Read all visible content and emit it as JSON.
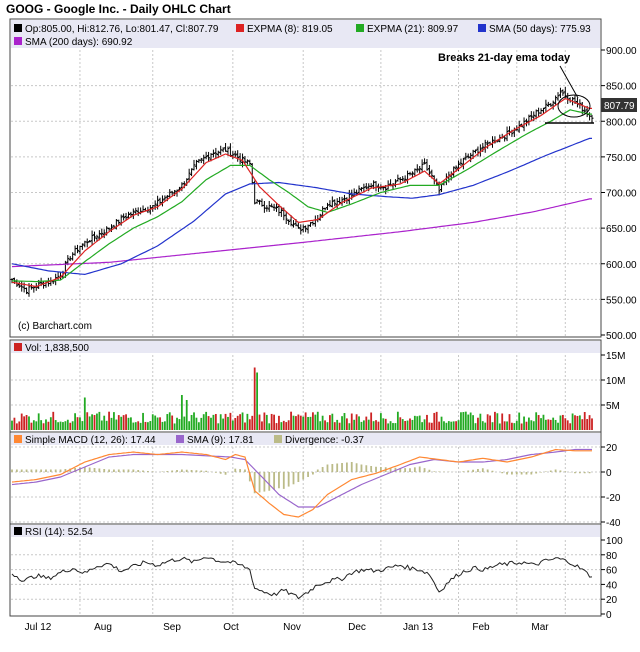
{
  "title": "GOOG - Google Inc. - Daily OHLC Chart",
  "colors": {
    "price_bar": "#000000",
    "ema8": "#dd2222",
    "ema21": "#22aa22",
    "sma50": "#2233cc",
    "sma200": "#aa22cc",
    "vol_up": "#22aa22",
    "vol_down": "#cc2222",
    "macd": "#ff8833",
    "macd_signal": "#9966cc",
    "divergence": "#bbbb88",
    "legend_bg": "#e8e8f4",
    "grid": "#c8c8c8",
    "price_box": "#333333"
  },
  "main_legend": {
    "ohlc": "Op:805.00, Hi:812.76, Lo:801.47, Cl:807.79",
    "ema8": "EXPMA (8): 819.05",
    "ema21": "EXPMA (21): 809.97",
    "sma50": "SMA (50 days): 775.93",
    "sma200": "SMA (200 days): 690.92"
  },
  "watermark": "(c) Barchart.com",
  "annotation": "Breaks 21-day ema today",
  "last_price_label": "807.79",
  "vol_legend": "Vol: 1,838,500",
  "macd_legend": {
    "macd": "Simple MACD (12, 26): 17.44",
    "signal": "SMA (9): 17.81",
    "divergence": "Divergence: -0.37"
  },
  "rsi_legend": "RSI (14): 52.54",
  "chart_data": [
    {
      "type": "ohlc",
      "panel": "price",
      "ylim": [
        500,
        900
      ],
      "yticks": [
        "900.00",
        "850.00",
        "800.00",
        "750.00",
        "700.00",
        "650.00",
        "600.00",
        "550.00",
        "500.00"
      ],
      "xticks": [
        "Jul 12",
        "Aug",
        "Sep",
        "Oct",
        "Nov",
        "Dec",
        "Jan 13",
        "Feb",
        "Mar"
      ],
      "close_keypoints": [
        [
          0,
          578
        ],
        [
          6,
          563
        ],
        [
          12,
          572
        ],
        [
          16,
          575
        ],
        [
          20,
          585
        ],
        [
          24,
          610
        ],
        [
          28,
          625
        ],
        [
          34,
          638
        ],
        [
          40,
          650
        ],
        [
          46,
          665
        ],
        [
          52,
          675
        ],
        [
          58,
          680
        ],
        [
          64,
          695
        ],
        [
          70,
          710
        ],
        [
          76,
          740
        ],
        [
          82,
          755
        ],
        [
          88,
          760
        ],
        [
          92,
          752
        ],
        [
          95,
          745
        ],
        [
          98,
          740
        ],
        [
          100,
          688
        ],
        [
          104,
          682
        ],
        [
          108,
          678
        ],
        [
          112,
          670
        ],
        [
          118,
          648
        ],
        [
          122,
          655
        ],
        [
          126,
          665
        ],
        [
          130,
          685
        ],
        [
          136,
          690
        ],
        [
          142,
          700
        ],
        [
          148,
          712
        ],
        [
          154,
          708
        ],
        [
          160,
          718
        ],
        [
          164,
          725
        ],
        [
          170,
          738
        ],
        [
          173,
          722
        ],
        [
          176,
          702
        ],
        [
          180,
          725
        ],
        [
          186,
          745
        ],
        [
          192,
          760
        ],
        [
          198,
          772
        ],
        [
          204,
          782
        ],
        [
          210,
          795
        ],
        [
          216,
          812
        ],
        [
          222,
          825
        ],
        [
          226,
          842
        ],
        [
          230,
          832
        ],
        [
          234,
          822
        ],
        [
          238,
          808
        ]
      ],
      "ema8_keypoints": [
        [
          0,
          574
        ],
        [
          10,
          568
        ],
        [
          20,
          581
        ],
        [
          30,
          618
        ],
        [
          40,
          645
        ],
        [
          50,
          668
        ],
        [
          60,
          680
        ],
        [
          70,
          705
        ],
        [
          80,
          742
        ],
        [
          88,
          754
        ],
        [
          95,
          745
        ],
        [
          102,
          708
        ],
        [
          110,
          682
        ],
        [
          118,
          658
        ],
        [
          126,
          662
        ],
        [
          136,
          686
        ],
        [
          148,
          706
        ],
        [
          160,
          712
        ],
        [
          170,
          730
        ],
        [
          176,
          712
        ],
        [
          184,
          733
        ],
        [
          196,
          765
        ],
        [
          208,
          790
        ],
        [
          218,
          808
        ],
        [
          228,
          832
        ],
        [
          238,
          818
        ]
      ],
      "ema21_keypoints": [
        [
          0,
          576
        ],
        [
          10,
          575
        ],
        [
          20,
          577
        ],
        [
          30,
          603
        ],
        [
          40,
          628
        ],
        [
          50,
          650
        ],
        [
          60,
          666
        ],
        [
          70,
          687
        ],
        [
          80,
          718
        ],
        [
          90,
          738
        ],
        [
          98,
          738
        ],
        [
          106,
          718
        ],
        [
          114,
          700
        ],
        [
          122,
          680
        ],
        [
          130,
          672
        ],
        [
          140,
          684
        ],
        [
          152,
          700
        ],
        [
          164,
          710
        ],
        [
          176,
          710
        ],
        [
          188,
          733
        ],
        [
          200,
          758
        ],
        [
          212,
          782
        ],
        [
          222,
          800
        ],
        [
          230,
          816
        ],
        [
          238,
          810
        ]
      ],
      "sma50_keypoints": [
        [
          0,
          600
        ],
        [
          15,
          590
        ],
        [
          30,
          585
        ],
        [
          45,
          600
        ],
        [
          60,
          625
        ],
        [
          75,
          660
        ],
        [
          88,
          698
        ],
        [
          98,
          712
        ],
        [
          110,
          714
        ],
        [
          125,
          707
        ],
        [
          140,
          698
        ],
        [
          155,
          694
        ],
        [
          165,
          692
        ],
        [
          176,
          697
        ],
        [
          190,
          710
        ],
        [
          205,
          730
        ],
        [
          220,
          752
        ],
        [
          238,
          776
        ]
      ],
      "sma200_keypoints": [
        [
          0,
          596
        ],
        [
          40,
          602
        ],
        [
          80,
          616
        ],
        [
          120,
          630
        ],
        [
          160,
          645
        ],
        [
          190,
          658
        ],
        [
          215,
          673
        ],
        [
          238,
          691
        ]
      ]
    },
    {
      "type": "bar",
      "panel": "volume",
      "ylim": [
        0,
        15
      ],
      "yticks": [
        "15M",
        "10M",
        "5M"
      ],
      "units": "M",
      "spikes": [
        [
          30,
          6.5
        ],
        [
          70,
          7
        ],
        [
          72,
          6
        ],
        [
          100,
          12.5
        ],
        [
          101,
          11.5
        ],
        [
          104,
          3.5
        ]
      ]
    },
    {
      "type": "line",
      "panel": "macd",
      "ylim": [
        -40,
        20
      ],
      "yticks": [
        "20",
        "0",
        "-20",
        "-40"
      ],
      "macd_keypoints": [
        [
          0,
          -8
        ],
        [
          10,
          -6
        ],
        [
          20,
          -2
        ],
        [
          30,
          8
        ],
        [
          40,
          14
        ],
        [
          50,
          16
        ],
        [
          60,
          14
        ],
        [
          70,
          16
        ],
        [
          80,
          14
        ],
        [
          88,
          10
        ],
        [
          92,
          14
        ],
        [
          96,
          12
        ],
        [
          100,
          -15
        ],
        [
          106,
          -25
        ],
        [
          112,
          -34
        ],
        [
          118,
          -36
        ],
        [
          124,
          -30
        ],
        [
          130,
          -18
        ],
        [
          140,
          -6
        ],
        [
          150,
          -1
        ],
        [
          160,
          6
        ],
        [
          168,
          12
        ],
        [
          176,
          10
        ],
        [
          184,
          8
        ],
        [
          194,
          11
        ],
        [
          204,
          8
        ],
        [
          214,
          12
        ],
        [
          224,
          18
        ],
        [
          232,
          17
        ],
        [
          238,
          17
        ]
      ],
      "signal_keypoints": [
        [
          0,
          -10
        ],
        [
          10,
          -8
        ],
        [
          20,
          -4
        ],
        [
          30,
          4
        ],
        [
          40,
          12
        ],
        [
          50,
          14
        ],
        [
          60,
          14
        ],
        [
          70,
          14
        ],
        [
          80,
          13
        ],
        [
          90,
          12
        ],
        [
          96,
          10
        ],
        [
          102,
          -2
        ],
        [
          110,
          -18
        ],
        [
          118,
          -28
        ],
        [
          126,
          -28
        ],
        [
          134,
          -20
        ],
        [
          144,
          -10
        ],
        [
          154,
          -2
        ],
        [
          164,
          6
        ],
        [
          174,
          10
        ],
        [
          184,
          8
        ],
        [
          194,
          8
        ],
        [
          204,
          10
        ],
        [
          214,
          14
        ],
        [
          224,
          16
        ],
        [
          232,
          18
        ],
        [
          238,
          18
        ]
      ]
    },
    {
      "type": "line",
      "panel": "rsi",
      "ylim": [
        0,
        100
      ],
      "yticks": [
        "100",
        "80",
        "60",
        "40",
        "20",
        "0"
      ],
      "rsi_keypoints": [
        [
          0,
          55
        ],
        [
          5,
          45
        ],
        [
          10,
          52
        ],
        [
          15,
          48
        ],
        [
          20,
          56
        ],
        [
          25,
          62
        ],
        [
          30,
          55
        ],
        [
          35,
          65
        ],
        [
          40,
          68
        ],
        [
          45,
          58
        ],
        [
          50,
          64
        ],
        [
          55,
          70
        ],
        [
          60,
          66
        ],
        [
          65,
          72
        ],
        [
          70,
          75
        ],
        [
          75,
          70
        ],
        [
          80,
          78
        ],
        [
          85,
          72
        ],
        [
          90,
          70
        ],
        [
          95,
          65
        ],
        [
          98,
          60
        ],
        [
          100,
          35
        ],
        [
          104,
          30
        ],
        [
          108,
          26
        ],
        [
          112,
          32
        ],
        [
          118,
          22
        ],
        [
          122,
          30
        ],
        [
          126,
          40
        ],
        [
          130,
          44
        ],
        [
          136,
          48
        ],
        [
          140,
          56
        ],
        [
          145,
          60
        ],
        [
          150,
          58
        ],
        [
          155,
          62
        ],
        [
          160,
          66
        ],
        [
          164,
          62
        ],
        [
          168,
          60
        ],
        [
          172,
          54
        ],
        [
          176,
          30
        ],
        [
          180,
          44
        ],
        [
          185,
          56
        ],
        [
          190,
          62
        ],
        [
          195,
          60
        ],
        [
          200,
          66
        ],
        [
          205,
          68
        ],
        [
          210,
          70
        ],
        [
          215,
          66
        ],
        [
          220,
          72
        ],
        [
          225,
          75
        ],
        [
          230,
          70
        ],
        [
          235,
          60
        ],
        [
          238,
          52
        ]
      ]
    }
  ]
}
